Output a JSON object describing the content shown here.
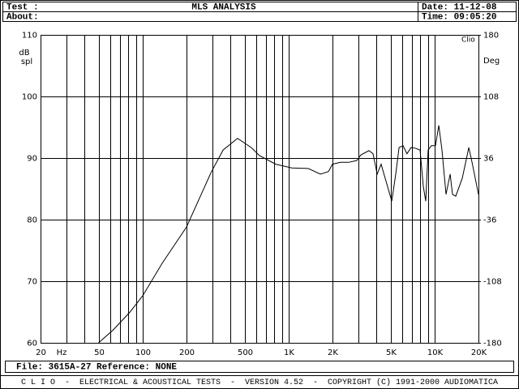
{
  "header": {
    "test": "Test :",
    "about": "About:",
    "title": "MLS ANALYSIS",
    "date": "Date: 11-12-08",
    "time": "Time: 09:05:20"
  },
  "chart_data": {
    "type": "line",
    "xscale": "log",
    "grid": true,
    "brand": "Clio",
    "ylabel": [
      "dB",
      "spl"
    ],
    "y2label": "Deg",
    "xlabel": "Hz",
    "x": [
      50,
      63,
      82,
      100,
      136,
      200,
      294,
      356,
      447,
      556,
      632,
      817,
      1054,
      1362,
      1652,
      1876,
      2000,
      2272,
      2582,
      2937,
      3128,
      3557,
      3793,
      4045,
      4309,
      4592,
      5093,
      5427,
      5713,
      6085,
      6484,
      6910,
      7364,
      7962,
      8375,
      8706,
      9053,
      9521,
      10156,
      10700,
      11247,
      11993,
      12790,
      13275,
      13979,
      15490,
      17166,
      18067,
      18754,
      20000
    ],
    "series": [
      {
        "color": "#000000",
        "values": [
          60.0,
          62.1,
          65.0,
          67.6,
          72.9,
          78.8,
          87.6,
          91.3,
          93.2,
          91.7,
          90.4,
          89.0,
          88.4,
          88.3,
          87.4,
          87.8,
          89.0,
          89.3,
          89.3,
          89.6,
          90.5,
          91.2,
          90.7,
          87.4,
          89.0,
          86.7,
          83.0,
          87.4,
          91.7,
          92.0,
          90.7,
          91.7,
          91.6,
          91.3,
          85.4,
          83.0,
          91.3,
          92.0,
          92.0,
          95.3,
          91.3,
          84.1,
          87.4,
          84.1,
          83.8,
          86.7,
          91.7,
          89.3,
          87.4,
          84.1
        ]
      }
    ],
    "xlim": [
      20,
      20000
    ],
    "xticks": [
      20,
      50,
      100,
      200,
      500,
      {
        "value": 1000,
        "label": "1K"
      },
      {
        "value": 2000,
        "label": "2K"
      },
      {
        "value": 5000,
        "label": "5K"
      },
      {
        "value": 10000,
        "label": "10K"
      },
      {
        "value": 20000,
        "label": "20K"
      }
    ],
    "xminorticks": [
      30,
      40,
      60,
      70,
      80,
      90,
      300,
      400,
      600,
      700,
      800,
      900,
      3000,
      4000,
      6000,
      7000,
      8000,
      9000
    ],
    "ylim": [
      60,
      110
    ],
    "yticks": [
      60,
      70,
      80,
      90,
      100,
      110
    ],
    "y2lim": [
      -180,
      180
    ],
    "y2ticks": [
      -180,
      -108,
      -36,
      36,
      108,
      180
    ]
  },
  "footer": {
    "file": "File: 3615A-27 Reference: NONE",
    "credits": "C L I O  -  ELECTRICAL & ACOUSTICAL TESTS  -  VERSION 4.52  -  COPYRIGHT (C) 1991-2000 AUDIOMATICA"
  }
}
